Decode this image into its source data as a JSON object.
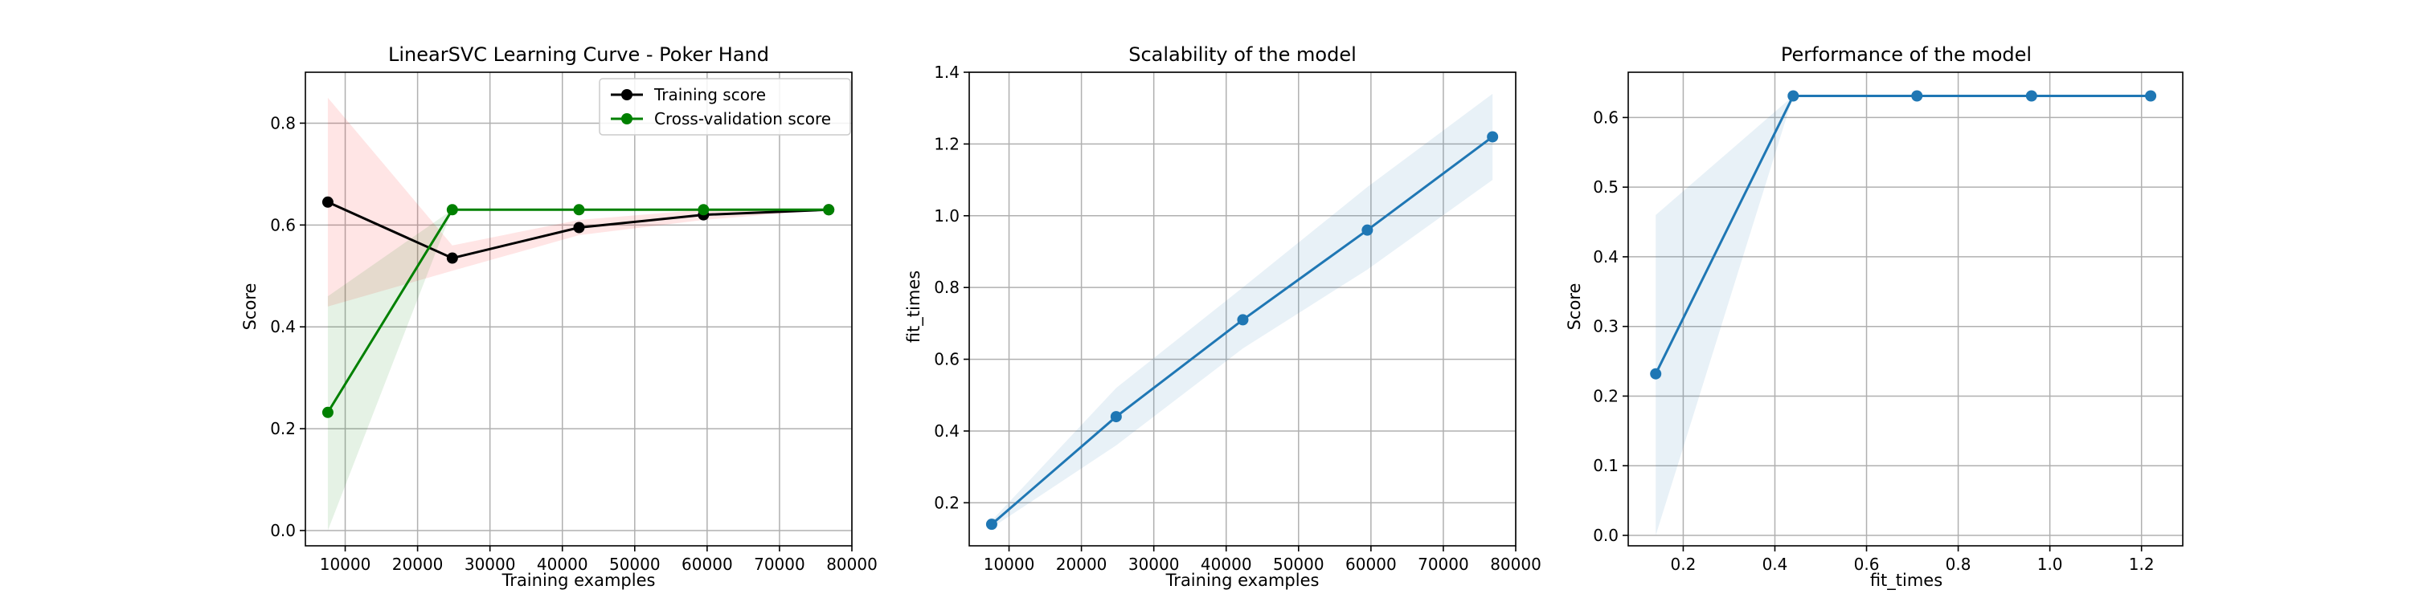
{
  "chart_data": [
    {
      "type": "line",
      "title": "LinearSVC Learning Curve - Poker Hand",
      "xlabel": "Training examples",
      "ylabel": "Score",
      "xlim": [
        4500,
        80000
      ],
      "ylim": [
        -0.03,
        0.9
      ],
      "xticks": [
        10000,
        20000,
        30000,
        40000,
        50000,
        60000,
        70000,
        80000
      ],
      "yticks": [
        0.0,
        0.2,
        0.4,
        0.6,
        0.8
      ],
      "tick_decimals": 1,
      "grid": true,
      "legend": "top-right",
      "series": [
        {
          "name": "Training score",
          "color": "#000000",
          "band_color": "#ff0000",
          "x": [
            7600,
            24800,
            42300,
            59500,
            76800
          ],
          "values": [
            0.645,
            0.535,
            0.595,
            0.62,
            0.63
          ],
          "band_low": [
            0.44,
            0.51,
            0.58,
            0.61,
            0.63
          ],
          "band_high": [
            0.85,
            0.56,
            0.61,
            0.63,
            0.63
          ]
        },
        {
          "name": "Cross-validation score",
          "color": "#008000",
          "band_color": "#008000",
          "x": [
            7600,
            24800,
            42300,
            59500,
            76800
          ],
          "values": [
            0.232,
            0.63,
            0.63,
            0.63,
            0.63
          ],
          "band_low": [
            0.0,
            0.63,
            0.63,
            0.63,
            0.63
          ],
          "band_high": [
            0.46,
            0.63,
            0.63,
            0.63,
            0.63
          ]
        }
      ]
    },
    {
      "type": "line",
      "title": "Scalability of the model",
      "xlabel": "Training examples",
      "ylabel": "fit_times",
      "xlim": [
        4500,
        80000
      ],
      "ylim": [
        0.08,
        1.4
      ],
      "xticks": [
        10000,
        20000,
        30000,
        40000,
        50000,
        60000,
        70000,
        80000
      ],
      "yticks": [
        0.2,
        0.4,
        0.6,
        0.8,
        1.0,
        1.2,
        1.4
      ],
      "tick_decimals": 1,
      "grid": true,
      "series": [
        {
          "color": "#1f77b4",
          "band_color": "#1f77b4",
          "x": [
            7600,
            24800,
            42300,
            59500,
            76800
          ],
          "values": [
            0.14,
            0.44,
            0.71,
            0.96,
            1.22
          ],
          "band_low": [
            0.13,
            0.36,
            0.63,
            0.85,
            1.1
          ],
          "band_high": [
            0.15,
            0.52,
            0.8,
            1.08,
            1.34
          ]
        }
      ]
    },
    {
      "type": "line",
      "title": "Performance of the model",
      "xlabel": "fit_times",
      "ylabel": "Score",
      "xlim": [
        0.08,
        1.29
      ],
      "ylim": [
        -0.015,
        0.665
      ],
      "xticks": [
        0.2,
        0.4,
        0.6,
        0.8,
        1.0,
        1.2
      ],
      "yticks": [
        0.0,
        0.1,
        0.2,
        0.3,
        0.4,
        0.5,
        0.6
      ],
      "tick_decimals": 1,
      "grid": true,
      "series": [
        {
          "color": "#1f77b4",
          "band_color": "#1f77b4",
          "x": [
            0.14,
            0.44,
            0.71,
            0.96,
            1.22
          ],
          "values": [
            0.232,
            0.631,
            0.631,
            0.631,
            0.631
          ],
          "band_low": [
            0.0,
            0.631,
            0.631,
            0.631,
            0.631
          ],
          "band_high": [
            0.46,
            0.631,
            0.631,
            0.631,
            0.631
          ]
        }
      ]
    }
  ]
}
